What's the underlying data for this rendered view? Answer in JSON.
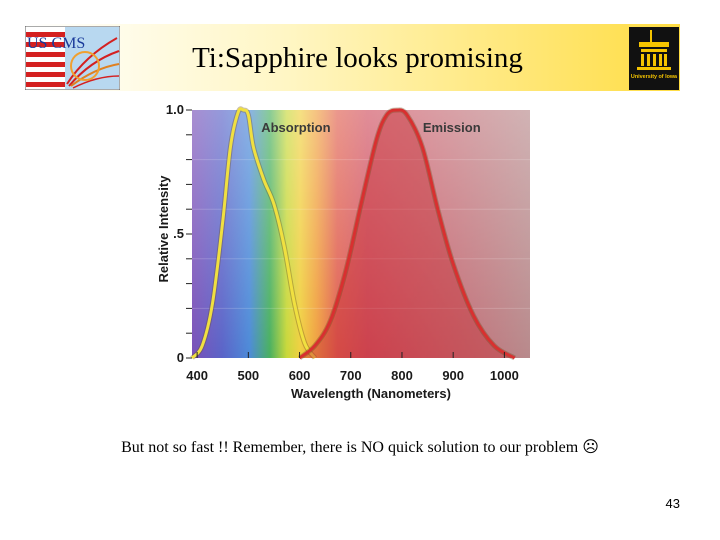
{
  "header": {
    "title": "Ti:Sapphire looks promising",
    "logo_left_text": "US CMS",
    "logo_right_text": "University of Iowa"
  },
  "chart_data": {
    "type": "line",
    "xlabel": "Wavelength (Nanometers)",
    "ylabel": "Relative Intensity",
    "xlim": [
      390,
      1050
    ],
    "ylim": [
      0,
      1.0
    ],
    "x_ticks": [
      "400",
      "500",
      "600",
      "700",
      "800",
      "900",
      "1000"
    ],
    "y_ticks": [
      "0",
      ".5",
      "1.0"
    ],
    "series": [
      {
        "name": "Absorption",
        "color": "#f0e040",
        "points": [
          [
            390,
            0.0
          ],
          [
            410,
            0.05
          ],
          [
            430,
            0.22
          ],
          [
            450,
            0.55
          ],
          [
            465,
            0.85
          ],
          [
            480,
            0.99
          ],
          [
            490,
            1.0
          ],
          [
            500,
            0.98
          ],
          [
            510,
            0.85
          ],
          [
            530,
            0.72
          ],
          [
            550,
            0.62
          ],
          [
            570,
            0.45
          ],
          [
            590,
            0.22
          ],
          [
            610,
            0.06
          ],
          [
            630,
            0.0
          ]
        ]
      },
      {
        "name": "Emission",
        "color": "#d83030",
        "points": [
          [
            600,
            0.0
          ],
          [
            630,
            0.05
          ],
          [
            660,
            0.15
          ],
          [
            690,
            0.35
          ],
          [
            720,
            0.62
          ],
          [
            750,
            0.88
          ],
          [
            770,
            0.98
          ],
          [
            790,
            1.0
          ],
          [
            810,
            0.98
          ],
          [
            840,
            0.85
          ],
          [
            870,
            0.6
          ],
          [
            900,
            0.38
          ],
          [
            940,
            0.17
          ],
          [
            980,
            0.05
          ],
          [
            1020,
            0.0
          ]
        ]
      }
    ]
  },
  "caption": "But not so fast !! Remember, there is NO quick solution to our problem ☹",
  "page_number": "43"
}
